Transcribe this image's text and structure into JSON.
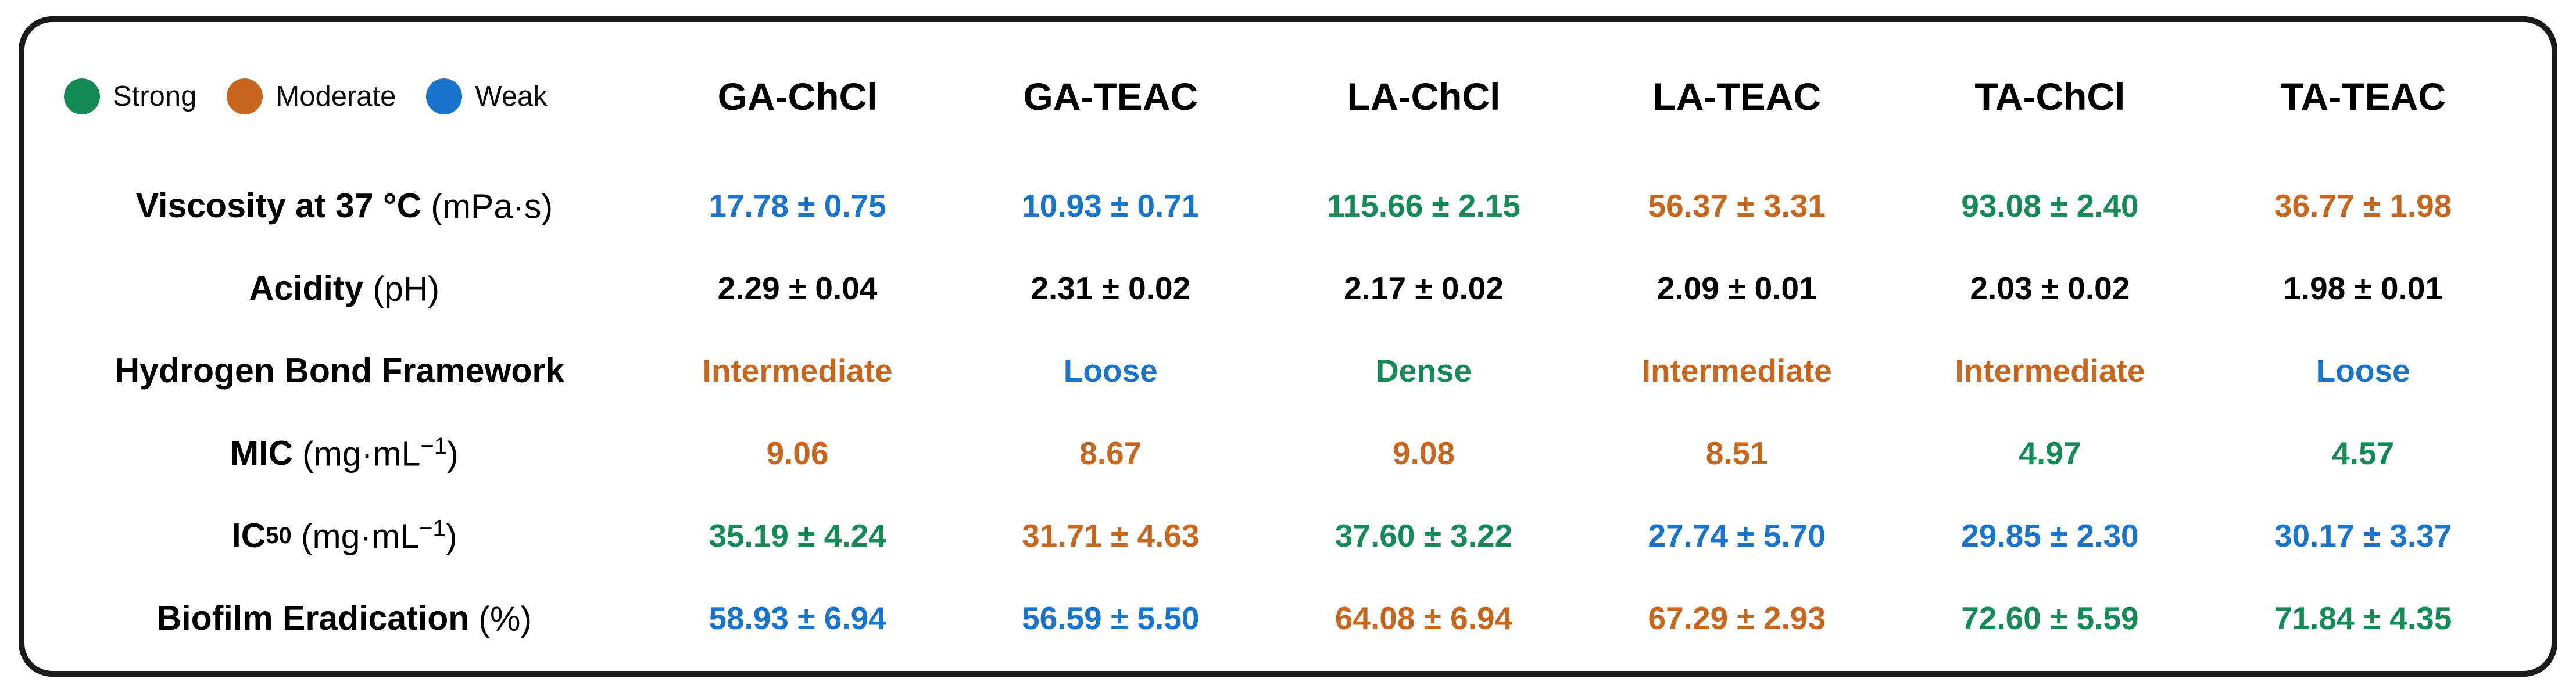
{
  "colors": {
    "strong": "#148a57",
    "moderate": "#c9661d",
    "weak": "#1874cd",
    "neutral": "#000000",
    "border": "#1a1a1a",
    "background": "#ffffff"
  },
  "chart_data": {
    "type": "table",
    "legend": [
      {
        "label": "Strong",
        "level": "strong"
      },
      {
        "label": "Moderate",
        "level": "moderate"
      },
      {
        "label": "Weak",
        "level": "weak"
      }
    ],
    "columns": [
      "GA-ChCl",
      "GA-TEAC",
      "LA-ChCl",
      "LA-TEAC",
      "TA-ChCl",
      "TA-TEAC"
    ],
    "rows": [
      {
        "label": "Viscosity at 37 °C",
        "unit": "(mPa·s)",
        "values": [
          {
            "text": "17.78 ± 0.75",
            "level": "weak"
          },
          {
            "text": "10.93 ± 0.71",
            "level": "weak"
          },
          {
            "text": "115.66 ± 2.15",
            "level": "strong"
          },
          {
            "text": "56.37 ± 3.31",
            "level": "moderate"
          },
          {
            "text": "93.08 ± 2.40",
            "level": "strong"
          },
          {
            "text": "36.77 ± 1.98",
            "level": "moderate"
          }
        ]
      },
      {
        "label": "Acidity",
        "unit": "(pH)",
        "values": [
          {
            "text": "2.29 ± 0.04",
            "level": "neutral"
          },
          {
            "text": "2.31 ± 0.02",
            "level": "neutral"
          },
          {
            "text": "2.17 ± 0.02",
            "level": "neutral"
          },
          {
            "text": "2.09 ± 0.01",
            "level": "neutral"
          },
          {
            "text": "2.03 ± 0.02",
            "level": "neutral"
          },
          {
            "text": "1.98 ± 0.01",
            "level": "neutral"
          }
        ]
      },
      {
        "label": "Hydrogen Bond Framework",
        "values": [
          {
            "text": "Intermediate",
            "level": "moderate"
          },
          {
            "text": "Loose",
            "level": "weak"
          },
          {
            "text": "Dense",
            "level": "strong"
          },
          {
            "text": "Intermediate",
            "level": "moderate"
          },
          {
            "text": "Intermediate",
            "level": "moderate"
          },
          {
            "text": "Loose",
            "level": "weak"
          }
        ]
      },
      {
        "label": "MIC",
        "unit_pre": "(mg·mL",
        "unit_sup": "−1",
        "unit_post": ")",
        "values": [
          {
            "text": "9.06",
            "level": "moderate"
          },
          {
            "text": "8.67",
            "level": "moderate"
          },
          {
            "text": "9.08",
            "level": "moderate"
          },
          {
            "text": "8.51",
            "level": "moderate"
          },
          {
            "text": "4.97",
            "level": "strong"
          },
          {
            "text": "4.57",
            "level": "strong"
          }
        ]
      },
      {
        "label": "IC",
        "label_sub": "50",
        "unit_pre": "(mg·mL",
        "unit_sup": "−1",
        "unit_post": ")",
        "values": [
          {
            "text": "35.19 ± 4.24",
            "level": "strong"
          },
          {
            "text": "31.71 ± 4.63",
            "level": "moderate"
          },
          {
            "text": "37.60 ± 3.22",
            "level": "strong"
          },
          {
            "text": "27.74 ± 5.70",
            "level": "weak"
          },
          {
            "text": "29.85 ± 2.30",
            "level": "weak"
          },
          {
            "text": "30.17 ± 3.37",
            "level": "weak"
          }
        ]
      },
      {
        "label": "Biofilm Eradication",
        "unit": "(%)",
        "values": [
          {
            "text": "58.93 ± 6.94",
            "level": "weak"
          },
          {
            "text": "56.59 ± 5.50",
            "level": "weak"
          },
          {
            "text": "64.08 ± 6.94",
            "level": "moderate"
          },
          {
            "text": "67.29 ± 2.93",
            "level": "moderate"
          },
          {
            "text": "72.60 ± 5.59",
            "level": "strong"
          },
          {
            "text": "71.84 ± 4.35",
            "level": "strong"
          }
        ]
      }
    ]
  }
}
